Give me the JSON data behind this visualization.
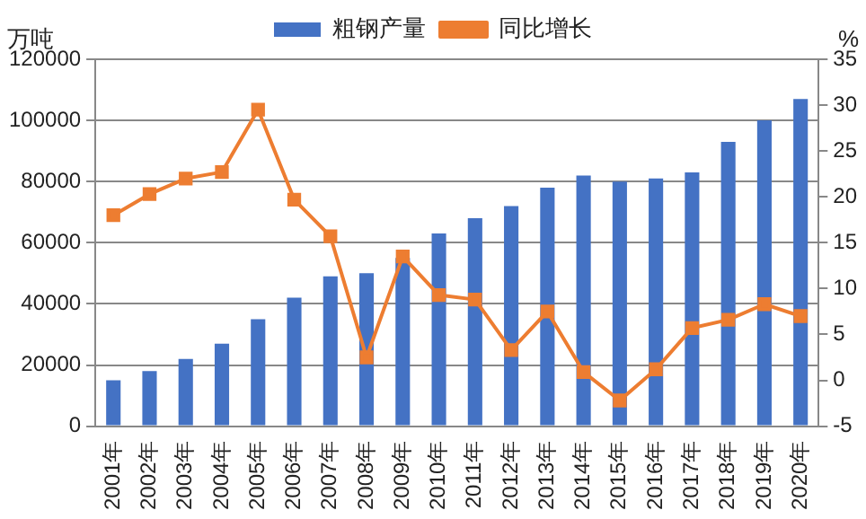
{
  "chart_data": {
    "type": "bar",
    "ylabel": "万吨",
    "y2label": "%",
    "categories": [
      "2001年",
      "2002年",
      "2003年",
      "2004年",
      "2005年",
      "2006年",
      "2007年",
      "2008年",
      "2009年",
      "2010年",
      "2011年",
      "2012年",
      "2013年",
      "2014年",
      "2015年",
      "2016年",
      "2017年",
      "2018年",
      "2019年",
      "2020年"
    ],
    "series": [
      {
        "name": "粗钢产量",
        "color": "#4472c4",
        "values": [
          15000,
          18000,
          22000,
          27000,
          35000,
          42000,
          49000,
          50000,
          55000,
          63000,
          68000,
          72000,
          78000,
          82000,
          80000,
          81000,
          83000,
          93000,
          100000,
          107000
        ]
      },
      {
        "name": "同比增长",
        "type": "line",
        "axis": "y2",
        "color": "#ed7d31",
        "marker": "square",
        "values": [
          18,
          20.3,
          22,
          22.7,
          29.5,
          19.7,
          15.7,
          2.5,
          13.5,
          9.3,
          8.8,
          3.3,
          7.5,
          0.9,
          -2.2,
          1.2,
          5.7,
          6.6,
          8.3,
          7
        ]
      }
    ],
    "ylim": [
      0,
      120000
    ],
    "yticks": [
      0,
      20000,
      40000,
      60000,
      80000,
      100000,
      120000
    ],
    "y2lim": [
      -5,
      35
    ],
    "y2ticks": [
      -5,
      0,
      5,
      10,
      15,
      20,
      25,
      30,
      35
    ],
    "grid": "y",
    "legend": "top"
  }
}
